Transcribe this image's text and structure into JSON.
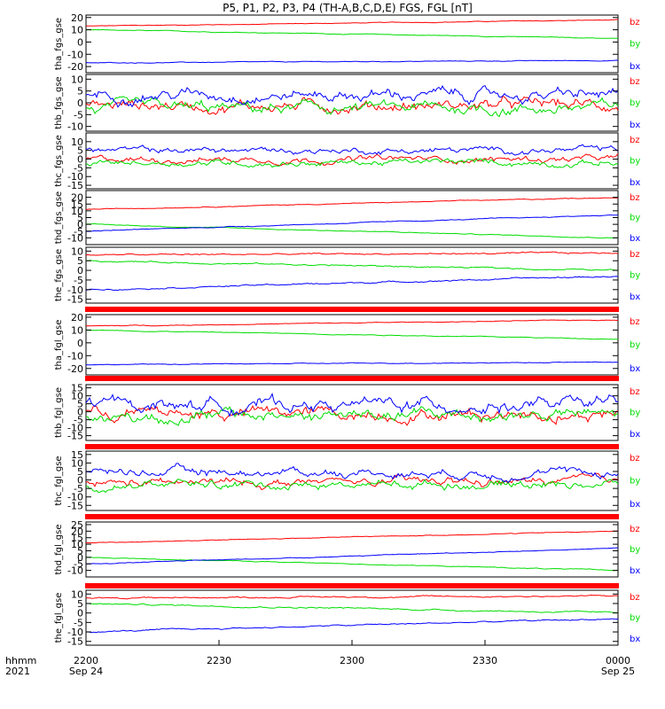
{
  "title": "P5, P1, P2, P3, P4 (TH-A,B,C,D,E) FGS, FGL [nT]",
  "colors": {
    "bx": "#0000ff",
    "by": "#00dd00",
    "bz": "#ff0000",
    "bar": "#ff0000",
    "axis": "#000000"
  },
  "xaxis": {
    "left_label_top": "hhmm",
    "left_label_bottom": "2021",
    "ticks": [
      {
        "top": "2200",
        "bottom": "Sep 24"
      },
      {
        "top": "2230",
        "bottom": ""
      },
      {
        "top": "2300",
        "bottom": ""
      },
      {
        "top": "2330",
        "bottom": ""
      },
      {
        "top": "0000",
        "bottom": "Sep 25"
      }
    ]
  },
  "chart_data": [
    {
      "type": "line",
      "ylabel": "tha_fgs_gse",
      "ylim": [
        -25,
        22
      ],
      "yticks": [
        "20",
        "10",
        "0",
        "-10",
        "-20"
      ],
      "yvals": [
        20,
        10,
        0,
        -10,
        -20
      ],
      "noise": 0.3,
      "series": [
        {
          "name": "bz",
          "start": 13,
          "end": 18
        },
        {
          "name": "by",
          "start": 10,
          "end": 3
        },
        {
          "name": "bx",
          "start": -17,
          "end": -15
        }
      ]
    },
    {
      "type": "line",
      "ylabel": "thb_fgs_gse",
      "ylim": [
        -12,
        12
      ],
      "yticks": [
        "10",
        "5",
        "0",
        "-5",
        "-10"
      ],
      "yvals": [
        10,
        5,
        0,
        -5,
        -10
      ],
      "noise": 2.5,
      "series": [
        {
          "name": "bz",
          "start": -1,
          "end": -1
        },
        {
          "name": "by",
          "start": -3,
          "end": -2
        },
        {
          "name": "bx",
          "start": 4,
          "end": 3
        }
      ]
    },
    {
      "type": "line",
      "ylabel": "thc_fgs_gse",
      "ylim": [
        -17,
        15
      ],
      "yticks": [
        "10",
        "5",
        "0",
        "-5",
        "-10",
        "-15"
      ],
      "yvals": [
        10,
        5,
        0,
        -5,
        -10,
        -15
      ],
      "noise": 1.8,
      "series": [
        {
          "name": "bz",
          "start": 0,
          "end": 0
        },
        {
          "name": "by",
          "start": -2,
          "end": -2
        },
        {
          "name": "bx",
          "start": 5,
          "end": 5
        }
      ]
    },
    {
      "type": "line",
      "ylabel": "thd_fgs_gse",
      "ylim": [
        -15,
        25
      ],
      "yticks": [
        "20",
        "15",
        "10",
        "5",
        "0",
        "-5",
        "-10"
      ],
      "yvals": [
        20,
        15,
        10,
        5,
        0,
        -5,
        -10
      ],
      "noise": 0.3,
      "series": [
        {
          "name": "bz",
          "start": 11,
          "end": 20
        },
        {
          "name": "by",
          "start": 0,
          "end": -10
        },
        {
          "name": "bx",
          "start": -5,
          "end": 7
        }
      ]
    },
    {
      "type": "line",
      "ylabel": "the_fgs_gse",
      "ylim": [
        -17,
        12
      ],
      "yticks": [
        "10",
        "5",
        "0",
        "-5",
        "-10",
        "-15"
      ],
      "yvals": [
        10,
        5,
        0,
        -5,
        -10,
        -15
      ],
      "noise": 0.4,
      "series": [
        {
          "name": "bz",
          "start": 8,
          "end": 9
        },
        {
          "name": "by",
          "start": 5,
          "end": 0
        },
        {
          "name": "bx",
          "start": -10,
          "end": -3
        }
      ]
    },
    {
      "type": "line",
      "ylabel": "tha_fgl_gse",
      "ylim": [
        -25,
        22
      ],
      "yticks": [
        "20",
        "10",
        "0",
        "-10",
        "-20"
      ],
      "yvals": [
        20,
        10,
        0,
        -10,
        -20
      ],
      "noise": 0.3,
      "series": [
        {
          "name": "bz",
          "start": 13,
          "end": 18
        },
        {
          "name": "by",
          "start": 10,
          "end": 3
        },
        {
          "name": "bx",
          "start": -17,
          "end": -15
        }
      ]
    },
    {
      "type": "line",
      "ylabel": "thb_fgl_gse",
      "ylim": [
        -18,
        17
      ],
      "yticks": [
        "15",
        "10",
        "5",
        "0",
        "-5",
        "-10",
        "-15"
      ],
      "yvals": [
        15,
        10,
        5,
        0,
        -5,
        -10,
        -15
      ],
      "noise": 4,
      "series": [
        {
          "name": "bz",
          "start": -1,
          "end": -1
        },
        {
          "name": "by",
          "start": -3,
          "end": -2
        },
        {
          "name": "bx",
          "start": 5,
          "end": 4
        }
      ]
    },
    {
      "type": "line",
      "ylabel": "thc_fgl_gse",
      "ylim": [
        -18,
        17
      ],
      "yticks": [
        "15",
        "10",
        "5",
        "0",
        "-5",
        "-10",
        "-15"
      ],
      "yvals": [
        15,
        10,
        5,
        0,
        -5,
        -10,
        -15
      ],
      "noise": 2.5,
      "series": [
        {
          "name": "bz",
          "start": -2,
          "end": -1
        },
        {
          "name": "by",
          "start": -3,
          "end": -2
        },
        {
          "name": "bx",
          "start": 5,
          "end": 4
        }
      ]
    },
    {
      "type": "line",
      "ylabel": "thd_fgl_gse",
      "ylim": [
        -15,
        27
      ],
      "yticks": [
        "25",
        "20",
        "15",
        "10",
        "5",
        "0",
        "-5",
        "-10"
      ],
      "yvals": [
        25,
        20,
        15,
        10,
        5,
        0,
        -5,
        -10
      ],
      "noise": 0.3,
      "series": [
        {
          "name": "bz",
          "start": 11,
          "end": 20
        },
        {
          "name": "by",
          "start": 0,
          "end": -10
        },
        {
          "name": "bx",
          "start": -5,
          "end": 7
        }
      ]
    },
    {
      "type": "line",
      "ylabel": "the_fgl_gse",
      "ylim": [
        -17,
        12
      ],
      "yticks": [
        "10",
        "5",
        "0",
        "-5",
        "-10",
        "-15"
      ],
      "yvals": [
        10,
        5,
        0,
        -5,
        -10,
        -15
      ],
      "noise": 0.4,
      "series": [
        {
          "name": "bz",
          "start": 8,
          "end": 9
        },
        {
          "name": "by",
          "start": 5,
          "end": 0
        },
        {
          "name": "bx",
          "start": -10,
          "end": -3
        }
      ]
    }
  ]
}
